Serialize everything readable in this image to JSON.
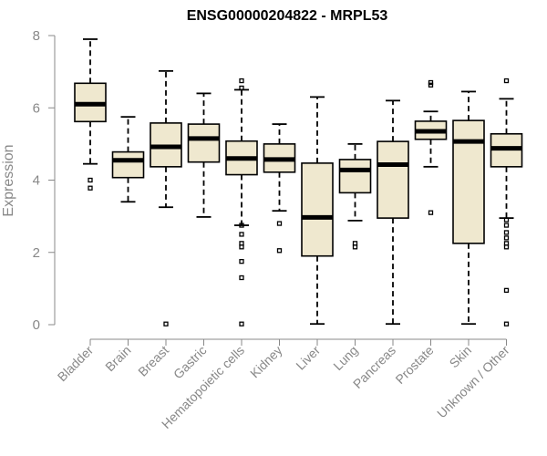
{
  "chart_data": {
    "type": "box",
    "title": "ENSG00000204822 - MRPL53",
    "xlabel": "",
    "ylabel": "Expression",
    "ylim": [
      0,
      8
    ],
    "yticks": [
      0,
      2,
      4,
      6,
      8
    ],
    "grid": false,
    "colors": {
      "box_fill": "#efe8cf",
      "stroke": "#000000",
      "axis": "#888888"
    },
    "categories": [
      "Bladder",
      "Brain",
      "Breast",
      "Gastric",
      "Hematopoietic cells",
      "Kidney",
      "Liver",
      "Lung",
      "Pancreas",
      "Prostate",
      "Skin",
      "Unknown / Other"
    ],
    "boxes": [
      {
        "label": "Bladder",
        "min": 4.45,
        "q1": 5.62,
        "median": 6.1,
        "q3": 6.68,
        "max": 7.9,
        "outliers": [
          4.0,
          3.78
        ]
      },
      {
        "label": "Brain",
        "min": 3.4,
        "q1": 4.07,
        "median": 4.55,
        "q3": 4.78,
        "max": 5.75,
        "outliers": []
      },
      {
        "label": "Breast",
        "min": 3.25,
        "q1": 4.37,
        "median": 4.92,
        "q3": 5.58,
        "max": 7.02,
        "outliers": [
          0.02
        ]
      },
      {
        "label": "Gastric",
        "min": 2.98,
        "q1": 4.5,
        "median": 5.15,
        "q3": 5.55,
        "max": 6.4,
        "outliers": []
      },
      {
        "label": "Hematopoietic cells",
        "min": 2.75,
        "q1": 4.15,
        "median": 4.6,
        "q3": 5.08,
        "max": 6.5,
        "outliers": [
          6.75,
          6.55,
          2.75,
          2.5,
          2.25,
          2.15,
          1.75,
          1.3,
          0.02
        ]
      },
      {
        "label": "Kidney",
        "min": 3.15,
        "q1": 4.22,
        "median": 4.57,
        "q3": 5.0,
        "max": 5.55,
        "outliers": [
          2.8,
          2.05
        ]
      },
      {
        "label": "Liver",
        "min": 0.02,
        "q1": 1.9,
        "median": 2.97,
        "q3": 4.47,
        "max": 6.3,
        "outliers": []
      },
      {
        "label": "Lung",
        "min": 2.88,
        "q1": 3.65,
        "median": 4.28,
        "q3": 4.57,
        "max": 5.0,
        "outliers": [
          2.25,
          2.15
        ]
      },
      {
        "label": "Pancreas",
        "min": 0.02,
        "q1": 2.95,
        "median": 4.43,
        "q3": 5.07,
        "max": 6.2,
        "outliers": []
      },
      {
        "label": "Prostate",
        "min": 4.37,
        "q1": 5.13,
        "median": 5.35,
        "q3": 5.63,
        "max": 5.9,
        "outliers": [
          6.7,
          6.63,
          3.1
        ]
      },
      {
        "label": "Skin",
        "min": 0.02,
        "q1": 2.25,
        "median": 5.07,
        "q3": 5.65,
        "max": 6.45,
        "outliers": []
      },
      {
        "label": "Unknown / Other",
        "min": 2.95,
        "q1": 4.37,
        "median": 4.88,
        "q3": 5.28,
        "max": 6.25,
        "outliers": [
          6.75,
          2.9,
          2.75,
          2.55,
          2.4,
          2.25,
          2.15,
          0.95,
          0.02
        ]
      }
    ]
  }
}
